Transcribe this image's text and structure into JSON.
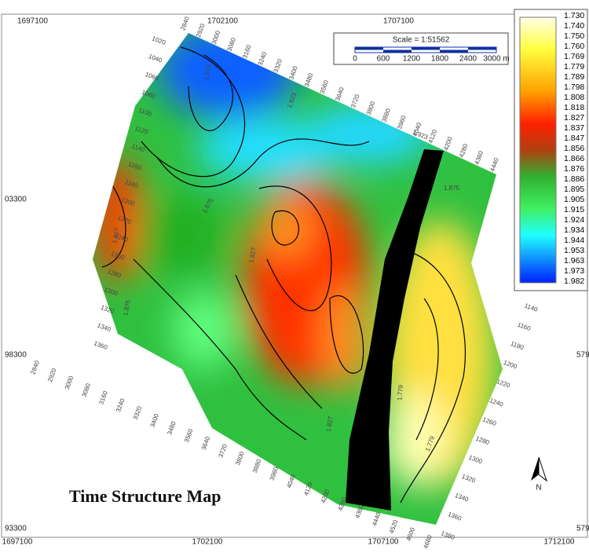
{
  "map": {
    "title": "Time Structure Map",
    "north": "N",
    "scale": {
      "label": "Scale = 1:51562",
      "ticks": [
        "0",
        "600",
        "1200",
        "1800",
        "2400",
        "3000 m"
      ]
    },
    "x_coords_top": [
      "1697100",
      "1702100",
      "1707100"
    ],
    "x_coords_bottom": [
      "1697100",
      "1702100",
      "1707100",
      "1712100"
    ],
    "y_coords_left": [
      "03300",
      "98300",
      "93300"
    ],
    "y_coords_right": [
      "579",
      "579"
    ],
    "colorbar": [
      "1.730",
      "1.740",
      "1.750",
      "1.760",
      "1.769",
      "1.779",
      "1.789",
      "1.798",
      "1.808",
      "1.818",
      "1.827",
      "1.837",
      "1.847",
      "1.856",
      "1.866",
      "1.876",
      "1.886",
      "1.895",
      "1.905",
      "1.915",
      "1.924",
      "1.934",
      "1.944",
      "1.953",
      "1.963",
      "1.973",
      "1.982"
    ],
    "inlines_left": [
      "1020",
      "1040",
      "1060",
      "1080",
      "1100",
      "1120",
      "1140",
      "1160",
      "1180",
      "1200",
      "1220",
      "1240",
      "1260",
      "1280",
      "1300",
      "1320",
      "1340",
      "1360"
    ],
    "crosslines_top": [
      "2840",
      "2920",
      "3000",
      "3080",
      "3160",
      "3240",
      "3320",
      "3400",
      "3480",
      "3560",
      "3640",
      "3720",
      "3800",
      "3880",
      "3960",
      "4040",
      "4120",
      "4200",
      "4280",
      "4360",
      "4440"
    ],
    "crosslines_bottom": [
      "2840",
      "2920",
      "3000",
      "3080",
      "3160",
      "3240",
      "3320",
      "3400",
      "3480",
      "3560",
      "3640",
      "3720",
      "3800",
      "3880",
      "3960",
      "4040",
      "4120",
      "4200",
      "4280",
      "4360",
      "4440",
      "4520",
      "4600",
      "4680"
    ],
    "inlines_right": [
      "1140",
      "1160",
      "1180",
      "1200",
      "1220",
      "1240",
      "1260",
      "1280",
      "1300",
      "1320",
      "1340",
      "1360",
      "1380"
    ],
    "contour_labels": [
      "1.913",
      "1.923",
      "1.923",
      "1.875",
      "1.875",
      "1.875",
      "1.827",
      "1.827",
      "1.827",
      "1.779",
      "1.779"
    ]
  }
}
